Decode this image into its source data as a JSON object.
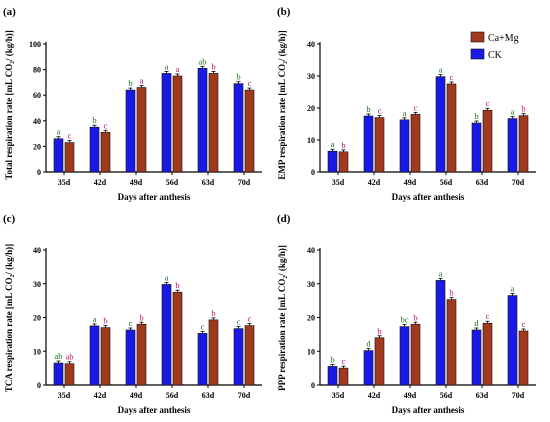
{
  "legend": [
    {
      "name": "Ca+Mg",
      "color": "#a0391e"
    },
    {
      "name": "CK",
      "color": "#1a1ae6"
    }
  ],
  "label_colors": {
    "CK": "#1a6e1a",
    "Ca+Mg": "#b01070"
  },
  "chart_data": [
    {
      "panel": "(a)",
      "type": "bar",
      "categories": [
        "35d",
        "42d",
        "49d",
        "56d",
        "63d",
        "70d"
      ],
      "ylabel": "Total respiration rate [mL CO₂/ (kg/h)]",
      "xlabel": "Days after anthesis",
      "ylim": [
        0,
        100
      ],
      "yticks": [
        0,
        20,
        40,
        60,
        80,
        100
      ],
      "series": [
        {
          "name": "CK",
          "values": [
            26,
            35,
            64,
            77,
            81,
            69
          ],
          "labels": [
            "a",
            "b",
            "b",
            "a",
            "ab",
            "b"
          ]
        },
        {
          "name": "Ca+Mg",
          "values": [
            23,
            31,
            66,
            75,
            77,
            64
          ],
          "labels": [
            "c",
            "c",
            "a",
            "a",
            "b",
            "c"
          ]
        }
      ]
    },
    {
      "panel": "(b)",
      "type": "bar",
      "categories": [
        "35d",
        "42d",
        "49d",
        "56d",
        "63d",
        "70d"
      ],
      "ylabel": "EMP respiration rate [mL CO₂/ (kg/h)]",
      "xlabel": "Days after anthesis",
      "ylim": [
        0,
        40
      ],
      "yticks": [
        0,
        10,
        20,
        30,
        40
      ],
      "series": [
        {
          "name": "CK",
          "values": [
            6.5,
            17.5,
            16.3,
            29.8,
            15.3,
            16.7
          ],
          "labels": [
            "a",
            "b",
            "a",
            "a",
            "b",
            "a"
          ]
        },
        {
          "name": "Ca+Mg",
          "values": [
            6.3,
            17,
            18,
            27.5,
            19.3,
            17.6
          ],
          "labels": [
            "b",
            "c",
            "c",
            "c",
            "c",
            "b"
          ]
        }
      ]
    },
    {
      "panel": "(c)",
      "type": "bar",
      "categories": [
        "35d",
        "42d",
        "49d",
        "56d",
        "63d",
        "70d"
      ],
      "ylabel": "TCA respiration rate [mL CO₂/ (kg/h)]",
      "xlabel": "Days after anthesis",
      "ylim": [
        0,
        40
      ],
      "yticks": [
        0,
        10,
        20,
        30,
        40
      ],
      "series": [
        {
          "name": "CK",
          "values": [
            6.5,
            17.5,
            16.3,
            29.8,
            15.3,
            16.7
          ],
          "labels": [
            "ab",
            "a",
            "c",
            "a",
            "c",
            "c"
          ]
        },
        {
          "name": "Ca+Mg",
          "values": [
            6.3,
            17,
            18,
            27.5,
            19.3,
            17.6
          ],
          "labels": [
            "ab",
            "b",
            "b",
            "b",
            "b",
            "c"
          ]
        }
      ]
    },
    {
      "panel": "(d)",
      "type": "bar",
      "categories": [
        "35d",
        "42d",
        "49d",
        "56d",
        "63d",
        "70d"
      ],
      "ylabel": "PPP respiration rate [mL CO₂/ (kg/h)]",
      "xlabel": "Days after anthesis",
      "ylim": [
        0,
        40
      ],
      "yticks": [
        0,
        10,
        20,
        30,
        40
      ],
      "series": [
        {
          "name": "CK",
          "values": [
            5.5,
            10.2,
            17.3,
            31,
            16.3,
            26.5
          ],
          "labels": [
            "b",
            "d",
            "bc",
            "a",
            "d",
            "a"
          ]
        },
        {
          "name": "Ca+Mg",
          "values": [
            5,
            14,
            18,
            25.3,
            18.3,
            16
          ],
          "labels": [
            "c",
            "b",
            "b",
            "b",
            "c",
            "c"
          ]
        }
      ]
    }
  ]
}
